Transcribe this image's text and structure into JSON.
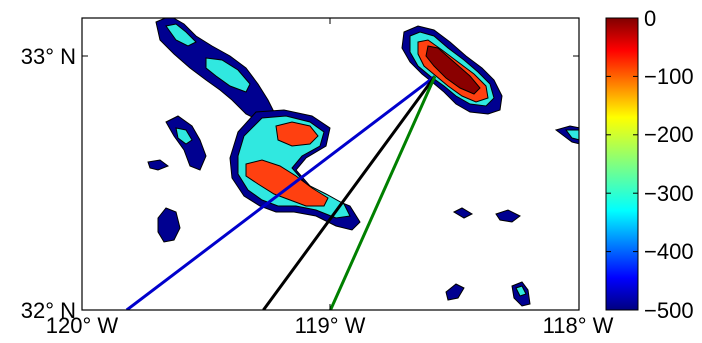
{
  "map": {
    "lat_labels": [
      "33° N",
      "32° N"
    ],
    "lon_labels": [
      "120° W",
      "119° W",
      "118° W"
    ],
    "lon_range": [
      -120,
      -118
    ],
    "lat_range": [
      32,
      33.15
    ],
    "lines": [
      {
        "color": "#0000cc",
        "from": [
          -119.82,
          32.0
        ],
        "to": [
          -118.58,
          32.92
        ]
      },
      {
        "color": "#000000",
        "from": [
          -119.27,
          32.0
        ],
        "to": [
          -118.58,
          32.92
        ]
      },
      {
        "color": "#008000",
        "from": [
          -119.0,
          32.0
        ],
        "to": [
          -118.58,
          32.92
        ]
      }
    ],
    "contour_levels": [
      -500,
      -400,
      -300,
      -200,
      -100,
      0
    ],
    "fill_colors": {
      "shelf": "#000090",
      "mid": "#30e8e0",
      "shallow": "#ff4010",
      "peak": "#8a0000"
    }
  },
  "colorbar": {
    "labels": [
      "0",
      "−100",
      "−200",
      "−300",
      "−400",
      "−500"
    ],
    "range": [
      -500,
      0
    ]
  }
}
